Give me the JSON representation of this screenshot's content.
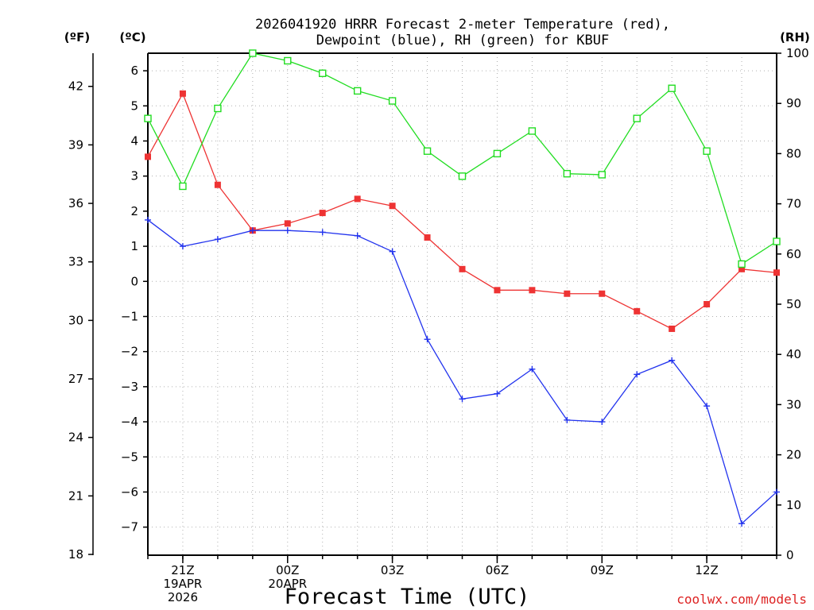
{
  "chart_data": {
    "type": "line",
    "title_line1": "2026041920 HRRR Forecast 2-meter Temperature (red),",
    "title_line2": "Dewpoint (blue), RH (green) for KBUF",
    "xlabel": "Forecast Time (UTC)",
    "credit": "coolwx.com/models",
    "units_f": "(ºF)",
    "units_c": "(ºC)",
    "units_rh": "(RH)",
    "x_hours": [
      20,
      21,
      22,
      23,
      24,
      25,
      26,
      27,
      28,
      29,
      30,
      31,
      32,
      33,
      34,
      35,
      36,
      37,
      38
    ],
    "xlim": [
      20,
      38
    ],
    "x_ticks": [
      {
        "hour": 21,
        "lines": [
          "21Z",
          "19APR",
          "2026"
        ]
      },
      {
        "hour": 24,
        "lines": [
          "00Z",
          "20APR"
        ]
      },
      {
        "hour": 27,
        "lines": [
          "03Z"
        ]
      },
      {
        "hour": 30,
        "lines": [
          "06Z"
        ]
      },
      {
        "hour": 33,
        "lines": [
          "09Z"
        ]
      },
      {
        "hour": 36,
        "lines": [
          "12Z"
        ]
      }
    ],
    "c_axis": {
      "ylim": [
        -7.8,
        6.5
      ],
      "ticks": [
        -7,
        -6,
        -5,
        -4,
        -3,
        -2,
        -1,
        0,
        1,
        2,
        3,
        4,
        5,
        6
      ],
      "labels": [
        "−7",
        "−6",
        "−5",
        "−4",
        "−3",
        "−2",
        "−1",
        "0",
        "1",
        "2",
        "3",
        "4",
        "5",
        "6"
      ]
    },
    "f_axis": {
      "ticks": [
        18,
        21,
        24,
        27,
        30,
        33,
        36,
        39,
        42
      ],
      "labels": [
        "18",
        "21",
        "24",
        "27",
        "30",
        "33",
        "36",
        "39",
        "42"
      ]
    },
    "rh_axis": {
      "ylim": [
        0,
        100
      ],
      "ticks": [
        0,
        10,
        20,
        30,
        40,
        50,
        60,
        70,
        80,
        90,
        100
      ],
      "labels": [
        "0",
        "10",
        "20",
        "30",
        "40",
        "50",
        "60",
        "70",
        "80",
        "90",
        "100"
      ]
    },
    "series": [
      {
        "name": "Temperature",
        "unit": "C",
        "color": "#ee3333",
        "marker": "filled-square",
        "values": [
          3.55,
          5.35,
          2.75,
          1.45,
          1.65,
          1.95,
          2.35,
          2.15,
          1.25,
          0.35,
          -0.25,
          -0.25,
          -0.35,
          -0.35,
          -0.85,
          -1.35,
          -0.65,
          0.35,
          0.25
        ]
      },
      {
        "name": "Dewpoint",
        "unit": "C",
        "color": "#2233ee",
        "marker": "plus",
        "values": [
          1.75,
          1.0,
          1.2,
          1.45,
          1.45,
          1.4,
          1.3,
          0.85,
          -1.65,
          -3.35,
          -3.2,
          -2.5,
          -3.95,
          -4.0,
          -2.65,
          -2.25,
          -3.55,
          -6.9,
          -6.0
        ]
      },
      {
        "name": "RH",
        "unit": "%",
        "color": "#22dd22",
        "marker": "open-square",
        "values": [
          87.0,
          73.5,
          89.0,
          100.0,
          98.5,
          96.0,
          92.5,
          90.5,
          80.5,
          75.5,
          80.0,
          84.5,
          76.0,
          75.8,
          87.0,
          93.0,
          80.5,
          58.0,
          62.5
        ]
      }
    ]
  }
}
